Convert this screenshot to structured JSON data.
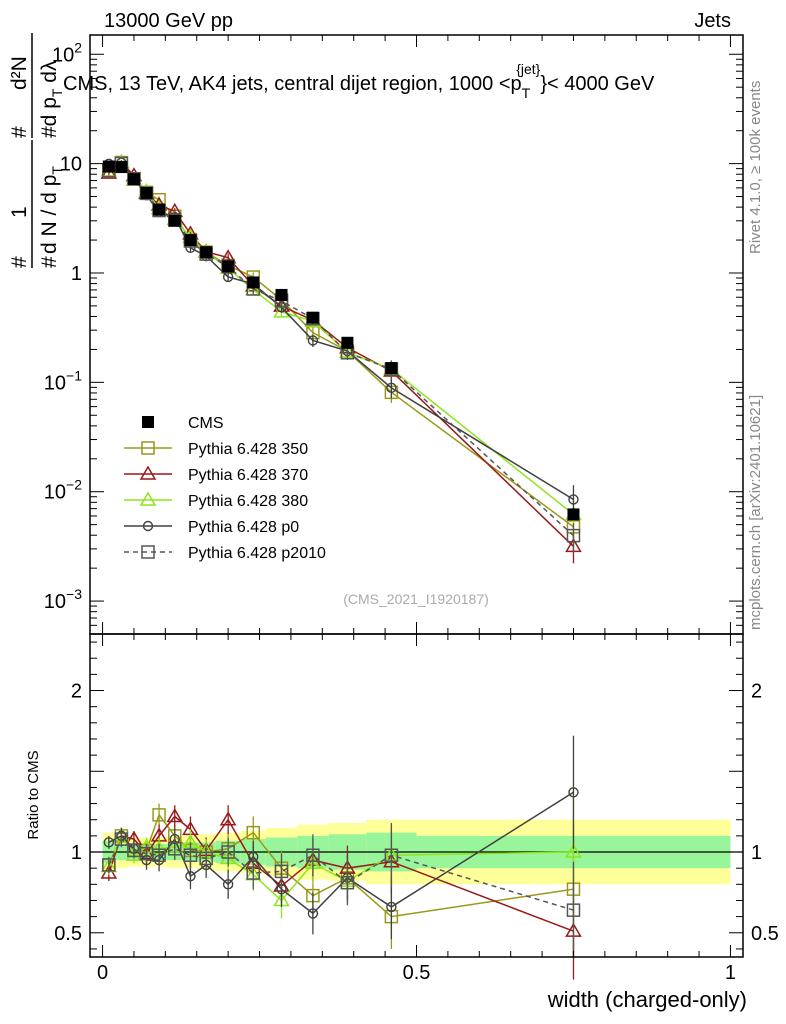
{
  "header": {
    "left": "13000 GeV pp",
    "right": "Jets"
  },
  "side_labels": {
    "rivet": "Rivet 4.1.0, ≥ 100k events",
    "mcplots": "mcplots.cern.ch [arXiv:2401.10621]"
  },
  "chart_data": {
    "type": "line",
    "title": "CMS, 13 TeV, AK4 jets, central dijet region, 1000 <p_T^{jet}< 4000 GeV",
    "title_parts": {
      "pre": "CMS, 13 TeV, AK4 jets, central dijet region, 1000 <p",
      "sub": "T",
      "sup": "{jet}",
      "post": "}< 4000 GeV"
    },
    "watermark": "(CMS_2021_I1920187)",
    "xlabel": "width (charged-only)",
    "ylabel": {
      "numer_hash": "#",
      "numer_one": "1",
      "denom_hash": "#",
      "denom_main": "d N / d p",
      "denom_sub": "T",
      "frac2_hash_num": "#",
      "frac2_num": "d²N",
      "frac2_hash_den": "#",
      "frac2_den_main": "d p",
      "frac2_den_sub": "T",
      "frac2_den_tail": " dλ"
    },
    "ratio_ylabel": "Ratio to CMS",
    "xlim": [
      -0.02,
      1.02
    ],
    "ylim": [
      0.0005,
      150
    ],
    "ratio_ylim": [
      0.35,
      2.35
    ],
    "x_ticks": [
      {
        "v": 0,
        "label": "0"
      },
      {
        "v": 0.5,
        "label": "0.5"
      },
      {
        "v": 1,
        "label": "1"
      }
    ],
    "y_ticks": [
      {
        "v": 0.001,
        "base": "10",
        "exp": "−3"
      },
      {
        "v": 0.01,
        "base": "10",
        "exp": "−2"
      },
      {
        "v": 0.1,
        "base": "10",
        "exp": "−1"
      },
      {
        "v": 1,
        "base": "1",
        "exp": ""
      },
      {
        "v": 10,
        "base": "10",
        "exp": ""
      },
      {
        "v": 100,
        "base": "10",
        "exp": "2"
      }
    ],
    "ratio_ticks": [
      {
        "v": 0.5,
        "label": "0.5"
      },
      {
        "v": 1,
        "label": "1"
      },
      {
        "v": 2,
        "label": "2"
      }
    ],
    "x": [
      0.01,
      0.03,
      0.05,
      0.07,
      0.09,
      0.115,
      0.14,
      0.165,
      0.2,
      0.24,
      0.285,
      0.335,
      0.39,
      0.46,
      0.75
    ],
    "band_edges": [
      0.0,
      0.02,
      0.04,
      0.06,
      0.08,
      0.1,
      0.13,
      0.15,
      0.18,
      0.22,
      0.26,
      0.31,
      0.36,
      0.42,
      0.5,
      1.0
    ],
    "band_inner": [
      0.07,
      0.05,
      0.05,
      0.05,
      0.05,
      0.05,
      0.06,
      0.06,
      0.07,
      0.08,
      0.09,
      0.1,
      0.11,
      0.12,
      0.1
    ],
    "band_outer": [
      0.12,
      0.1,
      0.09,
      0.09,
      0.09,
      0.1,
      0.1,
      0.11,
      0.12,
      0.13,
      0.15,
      0.17,
      0.18,
      0.2,
      0.2
    ],
    "cms": [
      9.4,
      9.3,
      7.2,
      5.4,
      3.8,
      3.0,
      2.0,
      1.55,
      1.15,
      0.82,
      0.63,
      0.39,
      0.23,
      0.135,
      0.0062
    ],
    "series": [
      {
        "name": "Pythia 6.428 350",
        "color": "#999919",
        "marker": "square",
        "dash": "",
        "ratio": [
          0.92,
          1.1,
          1.01,
          1.01,
          1.23,
          1.1,
          1.01,
          1.0,
          1.02,
          1.12,
          0.9,
          0.73,
          0.84,
          0.6,
          0.77
        ],
        "ratio_err": [
          0.05,
          0.05,
          0.05,
          0.06,
          0.07,
          0.07,
          0.08,
          0.08,
          0.09,
          0.1,
          0.11,
          0.13,
          0.14,
          0.2,
          0.4
        ]
      },
      {
        "name": "Pythia 6.428 370",
        "color": "#991919",
        "marker": "triangle",
        "dash": "",
        "ratio": [
          0.87,
          1.1,
          1.08,
          0.99,
          1.1,
          1.22,
          1.14,
          1.01,
          1.2,
          0.93,
          0.79,
          0.95,
          0.9,
          0.94,
          0.51
        ],
        "ratio_err": [
          0.05,
          0.05,
          0.05,
          0.06,
          0.07,
          0.07,
          0.08,
          0.08,
          0.09,
          0.1,
          0.11,
          0.13,
          0.14,
          0.2,
          0.3
        ]
      },
      {
        "name": "Pythia 6.428 380",
        "color": "#8ce619",
        "marker": "triangle",
        "dash": "",
        "ratio": [
          0.91,
          1.1,
          0.98,
          1.03,
          1.02,
          1.03,
          1.06,
          1.0,
          0.96,
          0.86,
          0.7,
          0.93,
          0.82,
          0.98,
          1.0
        ],
        "ratio_err": [
          0.05,
          0.05,
          0.05,
          0.06,
          0.07,
          0.07,
          0.08,
          0.08,
          0.09,
          0.1,
          0.11,
          0.13,
          0.14,
          0.2,
          0.4
        ]
      },
      {
        "name": "Pythia 6.428 p0",
        "color": "#404040",
        "marker": "circle",
        "dash": "",
        "ratio": [
          1.06,
          1.1,
          1.02,
          0.95,
          0.95,
          1.08,
          0.85,
          0.92,
          0.8,
          0.97,
          0.77,
          0.62,
          0.84,
          0.66,
          1.37
        ],
        "ratio_err": [
          0.04,
          0.05,
          0.05,
          0.06,
          0.07,
          0.07,
          0.08,
          0.08,
          0.09,
          0.1,
          0.11,
          0.13,
          0.14,
          0.2,
          0.35
        ]
      },
      {
        "name": "Pythia 6.428 p2010",
        "color": "#555555",
        "marker": "square",
        "dash": "5,4",
        "ratio": [
          0.92,
          1.08,
          1.01,
          0.99,
          0.98,
          1.02,
          0.98,
          0.96,
          1.0,
          0.87,
          0.88,
          0.98,
          0.81,
          0.98,
          0.64
        ],
        "ratio_err": [
          0.05,
          0.05,
          0.05,
          0.06,
          0.07,
          0.07,
          0.08,
          0.08,
          0.09,
          0.1,
          0.11,
          0.13,
          0.14,
          0.2,
          0.3
        ]
      }
    ],
    "legend": {
      "position": "bottom-left",
      "entries": [
        "CMS",
        "Pythia 6.428 350",
        "Pythia 6.428 370",
        "Pythia 6.428 380",
        "Pythia 6.428 p0",
        "Pythia 6.428 p2010"
      ]
    }
  }
}
